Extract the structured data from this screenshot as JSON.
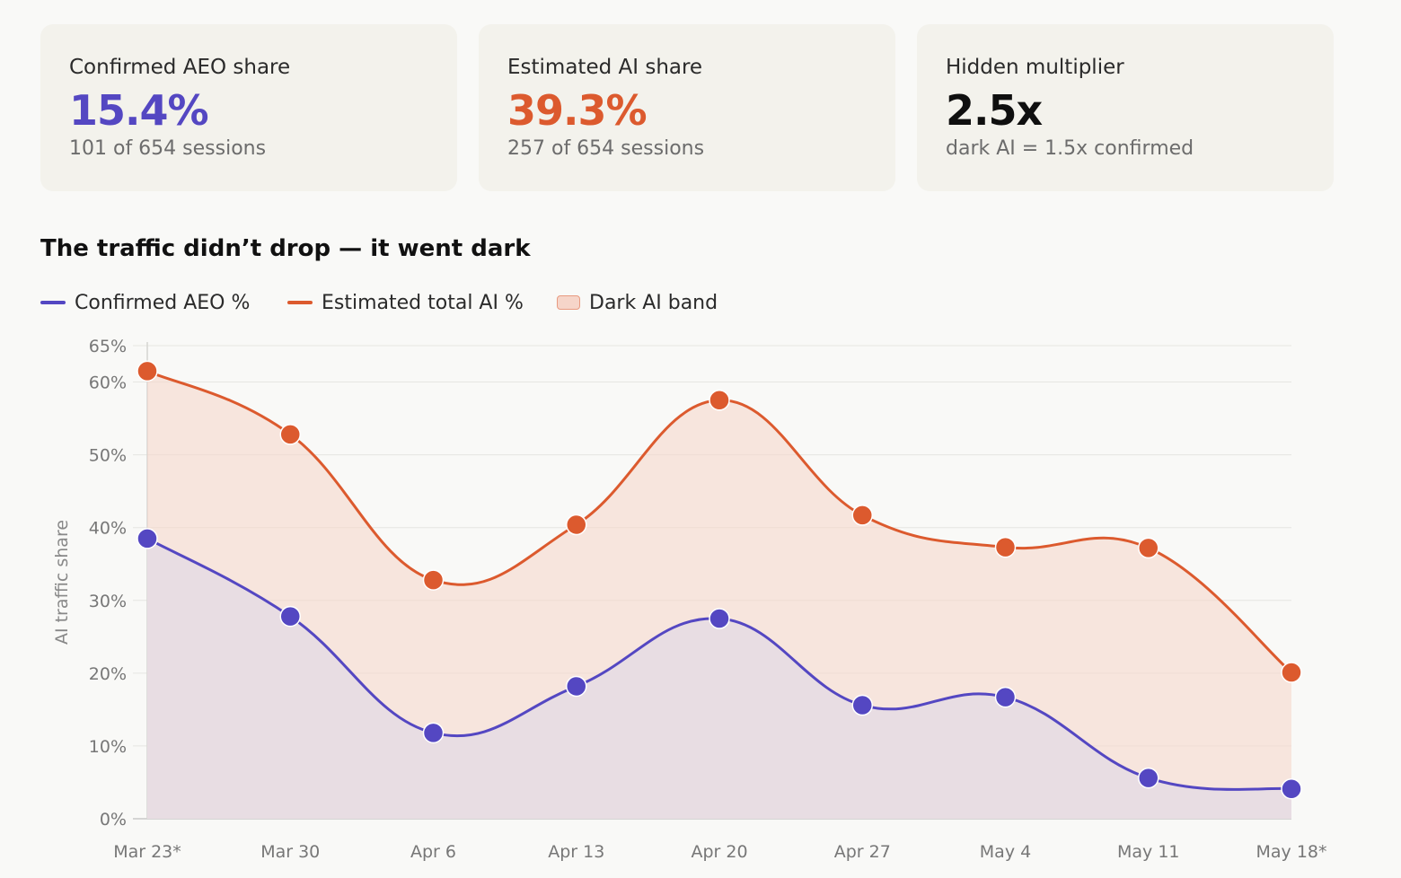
{
  "cards": [
    {
      "label": "Confirmed AEO share",
      "value": "15.4%",
      "sub": "101 of 654 sessions",
      "color": "#5447c2"
    },
    {
      "label": "Estimated AI share",
      "value": "39.3%",
      "sub": "257 of 654 sessions",
      "color": "#dc5a2e"
    },
    {
      "label": "Hidden multiplier",
      "value": "2.5x",
      "sub": "dark AI = 1.5x confirmed",
      "color": "#0f0f0f"
    }
  ],
  "chart_title": "The traffic didn’t drop — it went dark",
  "legend": [
    {
      "label": "Confirmed AEO %",
      "kind": "line",
      "color": "#5447c2"
    },
    {
      "label": "Estimated total AI %",
      "kind": "line",
      "color": "#dc5a2e"
    },
    {
      "label": "Dark AI band",
      "kind": "band",
      "color": "#f6d5c9"
    }
  ],
  "chart_data": {
    "type": "line",
    "title": "The traffic didn’t drop — it went dark",
    "xlabel": "",
    "ylabel": "AI traffic share",
    "ylim": [
      0,
      65
    ],
    "yticks": [
      0,
      10,
      20,
      30,
      40,
      50,
      60,
      65
    ],
    "categories": [
      "Mar 23*",
      "Mar 30",
      "Apr 6",
      "Apr 13",
      "Apr 20",
      "Apr 27",
      "May 4",
      "May 11",
      "May 18*"
    ],
    "grid": true,
    "legend_position": "top-left",
    "series": [
      {
        "name": "Confirmed AEO %",
        "color": "#5447c2",
        "values": [
          38.5,
          27.8,
          11.8,
          18.2,
          27.5,
          15.6,
          16.7,
          5.6,
          4.1
        ]
      },
      {
        "name": "Estimated total AI %",
        "color": "#dc5a2e",
        "values": [
          61.5,
          52.8,
          32.8,
          40.4,
          57.5,
          41.7,
          37.3,
          37.2,
          20.1
        ]
      }
    ],
    "band": {
      "name": "Dark AI band",
      "lower": "Confirmed AEO %",
      "upper": "Estimated total AI %",
      "color": "#f6d5c9"
    }
  }
}
